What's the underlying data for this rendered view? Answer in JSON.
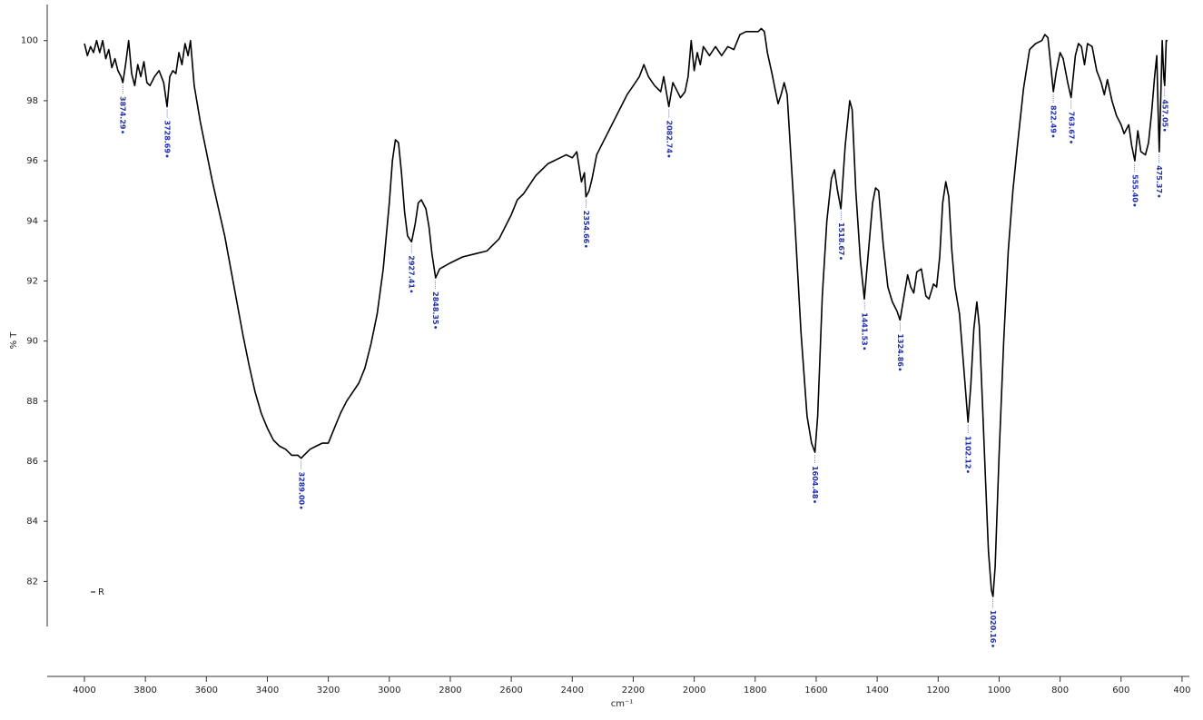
{
  "chart_data": {
    "type": "line",
    "x_label": "cm⁻¹",
    "y_label": "% T",
    "xlim": [
      4122,
      376
    ],
    "ylim": [
      80.5,
      101.2
    ],
    "xticks": [
      4000,
      3800,
      3600,
      3400,
      3200,
      3000,
      2800,
      2600,
      2400,
      2200,
      2000,
      1800,
      1600,
      1400,
      1200,
      1000,
      800,
      600,
      400
    ],
    "yticks": [
      82,
      84,
      86,
      88,
      90,
      92,
      94,
      96,
      98,
      100
    ],
    "legend": "lower left",
    "series": [
      {
        "name": "R",
        "color": "#000000",
        "x": [
          4000,
          3990,
          3980,
          3970,
          3960,
          3950,
          3940,
          3930,
          3920,
          3910,
          3900,
          3890,
          3880,
          3874,
          3865,
          3855,
          3845,
          3835,
          3825,
          3815,
          3805,
          3795,
          3785,
          3770,
          3755,
          3740,
          3729,
          3720,
          3710,
          3700,
          3690,
          3680,
          3670,
          3660,
          3652,
          3640,
          3620,
          3600,
          3580,
          3560,
          3540,
          3520,
          3500,
          3480,
          3460,
          3440,
          3420,
          3400,
          3380,
          3360,
          3340,
          3320,
          3300,
          3289,
          3280,
          3260,
          3240,
          3220,
          3200,
          3180,
          3160,
          3140,
          3120,
          3100,
          3080,
          3060,
          3040,
          3020,
          3000,
          2990,
          2980,
          2970,
          2960,
          2950,
          2940,
          2927,
          2915,
          2905,
          2895,
          2880,
          2870,
          2860,
          2848,
          2835,
          2800,
          2760,
          2720,
          2680,
          2640,
          2600,
          2580,
          2560,
          2540,
          2520,
          2500,
          2480,
          2460,
          2440,
          2420,
          2400,
          2385,
          2370,
          2360,
          2355,
          2345,
          2335,
          2320,
          2300,
          2280,
          2260,
          2240,
          2220,
          2200,
          2180,
          2165,
          2150,
          2130,
          2110,
          2100,
          2090,
          2083,
          2070,
          2060,
          2045,
          2030,
          2020,
          2010,
          2000,
          1990,
          1980,
          1970,
          1950,
          1930,
          1910,
          1890,
          1870,
          1850,
          1830,
          1810,
          1790,
          1780,
          1770,
          1760,
          1745,
          1735,
          1725,
          1715,
          1705,
          1695,
          1685,
          1670,
          1650,
          1630,
          1615,
          1604,
          1595,
          1580,
          1565,
          1550,
          1540,
          1530,
          1519,
          1505,
          1490,
          1482,
          1470,
          1455,
          1442,
          1430,
          1415,
          1405,
          1395,
          1380,
          1365,
          1350,
          1335,
          1325,
          1310,
          1300,
          1290,
          1280,
          1270,
          1255,
          1240,
          1230,
          1215,
          1205,
          1195,
          1185,
          1175,
          1165,
          1155,
          1145,
          1130,
          1115,
          1102,
          1093,
          1083,
          1073,
          1065,
          1055,
          1045,
          1035,
          1025,
          1020,
          1013,
          1000,
          985,
          970,
          955,
          940,
          920,
          900,
          880,
          860,
          850,
          840,
          832,
          822,
          812,
          800,
          790,
          775,
          764,
          750,
          740,
          730,
          720,
          710,
          695,
          680,
          665,
          655,
          645,
          630,
          615,
          600,
          590,
          575,
          565,
          555,
          545,
          535,
          520,
          510,
          500,
          490,
          483,
          478,
          475,
          470,
          465,
          460,
          457,
          452,
          448
        ],
        "values": [
          99.9,
          99.5,
          99.8,
          99.6,
          100.0,
          99.6,
          100.0,
          99.4,
          99.7,
          99.1,
          99.4,
          99.0,
          98.8,
          98.6,
          99.2,
          100.0,
          98.9,
          98.5,
          99.2,
          98.8,
          99.3,
          98.6,
          98.5,
          98.8,
          99.0,
          98.6,
          97.8,
          98.8,
          99.0,
          98.9,
          99.6,
          99.2,
          99.9,
          99.5,
          100.0,
          98.5,
          97.3,
          96.3,
          95.3,
          94.4,
          93.5,
          92.4,
          91.3,
          90.2,
          89.2,
          88.3,
          87.6,
          87.1,
          86.7,
          86.5,
          86.4,
          86.2,
          86.2,
          86.1,
          86.2,
          86.4,
          86.5,
          86.6,
          86.6,
          87.1,
          87.6,
          88.0,
          88.3,
          88.6,
          89.1,
          89.9,
          90.9,
          92.4,
          94.6,
          96.0,
          96.7,
          96.6,
          95.6,
          94.3,
          93.5,
          93.3,
          93.9,
          94.6,
          94.7,
          94.4,
          93.8,
          92.9,
          92.1,
          92.4,
          92.6,
          92.8,
          92.9,
          93.0,
          93.4,
          94.2,
          94.7,
          94.9,
          95.2,
          95.5,
          95.7,
          95.9,
          96.0,
          96.1,
          96.2,
          96.1,
          96.3,
          95.3,
          95.6,
          94.8,
          95.0,
          95.4,
          96.2,
          96.6,
          97.0,
          97.4,
          97.8,
          98.2,
          98.5,
          98.8,
          99.2,
          98.8,
          98.5,
          98.3,
          98.8,
          98.2,
          97.8,
          98.6,
          98.4,
          98.1,
          98.3,
          98.8,
          100.0,
          99.0,
          99.6,
          99.2,
          99.8,
          99.5,
          99.8,
          99.5,
          99.8,
          99.7,
          100.2,
          100.3,
          100.3,
          100.3,
          100.4,
          100.3,
          99.6,
          98.9,
          98.4,
          97.9,
          98.2,
          98.6,
          98.2,
          96.5,
          94.0,
          90.3,
          87.5,
          86.6,
          86.3,
          87.5,
          91.5,
          94.0,
          95.4,
          95.7,
          95.0,
          94.4,
          96.5,
          98.0,
          97.7,
          95.0,
          92.7,
          91.4,
          92.8,
          94.6,
          95.1,
          95.0,
          93.2,
          91.8,
          91.3,
          91.0,
          90.7,
          91.6,
          92.2,
          91.8,
          91.6,
          92.3,
          92.4,
          91.5,
          91.4,
          91.9,
          91.8,
          92.8,
          94.6,
          95.3,
          94.8,
          93.0,
          91.8,
          90.9,
          89.0,
          87.3,
          88.5,
          90.4,
          91.3,
          90.5,
          88.0,
          85.5,
          83.0,
          81.7,
          81.5,
          82.5,
          86.2,
          90.0,
          93.0,
          95.0,
          96.5,
          98.4,
          99.7,
          99.9,
          100.0,
          100.2,
          100.1,
          99.3,
          98.3,
          99.0,
          99.6,
          99.4,
          98.6,
          98.1,
          99.5,
          99.9,
          99.8,
          99.2,
          99.9,
          99.8,
          99.0,
          98.6,
          98.2,
          98.7,
          98.0,
          97.5,
          97.2,
          96.9,
          97.2,
          96.5,
          96.0,
          97.0,
          96.3,
          96.2,
          96.6,
          97.6,
          98.8,
          99.5,
          97.5,
          96.3,
          98.0,
          100.0,
          98.8,
          98.5,
          100.0,
          100.0
        ]
      }
    ],
    "peaks": {
      "color": "#1f2fa8",
      "x": [
        3874.29,
        3728.69,
        3289.0,
        2927.41,
        2848.35,
        2354.66,
        2082.74,
        1604.48,
        1518.67,
        1441.53,
        1324.86,
        1102.12,
        1020.16,
        822.49,
        763.67,
        555.4,
        475.37,
        457.05
      ],
      "y": [
        98.6,
        97.8,
        86.1,
        93.3,
        92.1,
        94.8,
        97.8,
        86.3,
        94.4,
        91.4,
        90.7,
        87.3,
        81.5,
        98.3,
        98.1,
        96.0,
        96.3,
        98.5
      ],
      "labels": [
        "3874.29",
        "3728.69",
        "3289.00",
        "2927.41",
        "2848.35",
        "2354.66",
        "2082.74",
        "1604.48",
        "1518.67",
        "1441.53",
        "1324.86",
        "1102.12",
        "1020.16",
        "822.49",
        "763.67",
        "555.40",
        "475.37",
        "457.05"
      ]
    }
  }
}
